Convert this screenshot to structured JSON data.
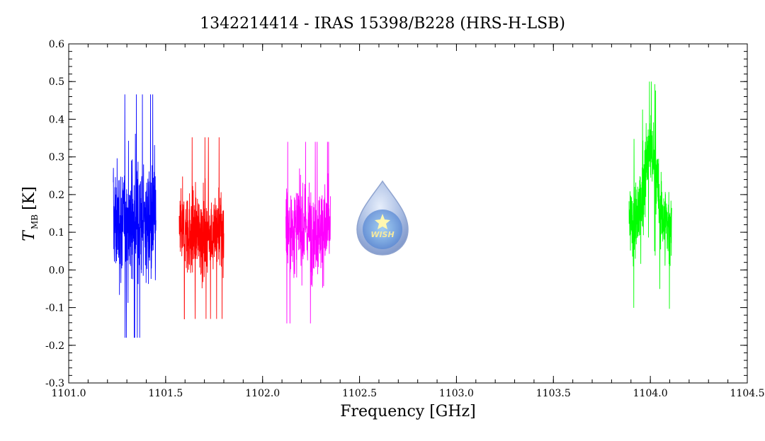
{
  "chart_data": {
    "type": "line",
    "title": "1342214414 - IRAS 15398/B228 (HRS-H-LSB)",
    "xlabel": "Frequency [GHz]",
    "ylabel_main": "T",
    "ylabel_sub": "MB",
    "ylabel_unit": "[K]",
    "xlim": [
      1101.0,
      1104.5
    ],
    "ylim": [
      -0.3,
      0.6
    ],
    "x_ticks": [
      "1101.0",
      "1101.5",
      "1102.0",
      "1102.5",
      "1103.0",
      "1103.5",
      "1104.0",
      "1104.5"
    ],
    "y_ticks": [
      "-0.3",
      "-0.2",
      "-0.1",
      "0.0",
      "0.1",
      "0.2",
      "0.3",
      "0.4",
      "0.5",
      "0.6"
    ],
    "grid": false,
    "series": [
      {
        "color": "#0000ff",
        "x_range": [
          1101.23,
          1101.45
        ],
        "baseline": 0.13,
        "noise": 0.12,
        "max": 0.49,
        "min": -0.18
      },
      {
        "color": "#ff0000",
        "x_range": [
          1101.57,
          1101.8
        ],
        "baseline": 0.1,
        "noise": 0.09,
        "max": 0.36,
        "min": -0.13
      },
      {
        "color": "#ff00ff",
        "x_range": [
          1102.12,
          1102.35
        ],
        "baseline": 0.11,
        "noise": 0.09,
        "max": 0.34,
        "min": -0.18
      },
      {
        "color": "#00ff00",
        "x_range": [
          1103.89,
          1104.11
        ],
        "baseline": 0.12,
        "noise": 0.08,
        "max": 0.5,
        "min": -0.11,
        "peak_center": 1104.0,
        "peak_height": 0.2
      }
    ],
    "logo": {
      "text": "WISH",
      "icon": "water-drop-icon"
    }
  }
}
